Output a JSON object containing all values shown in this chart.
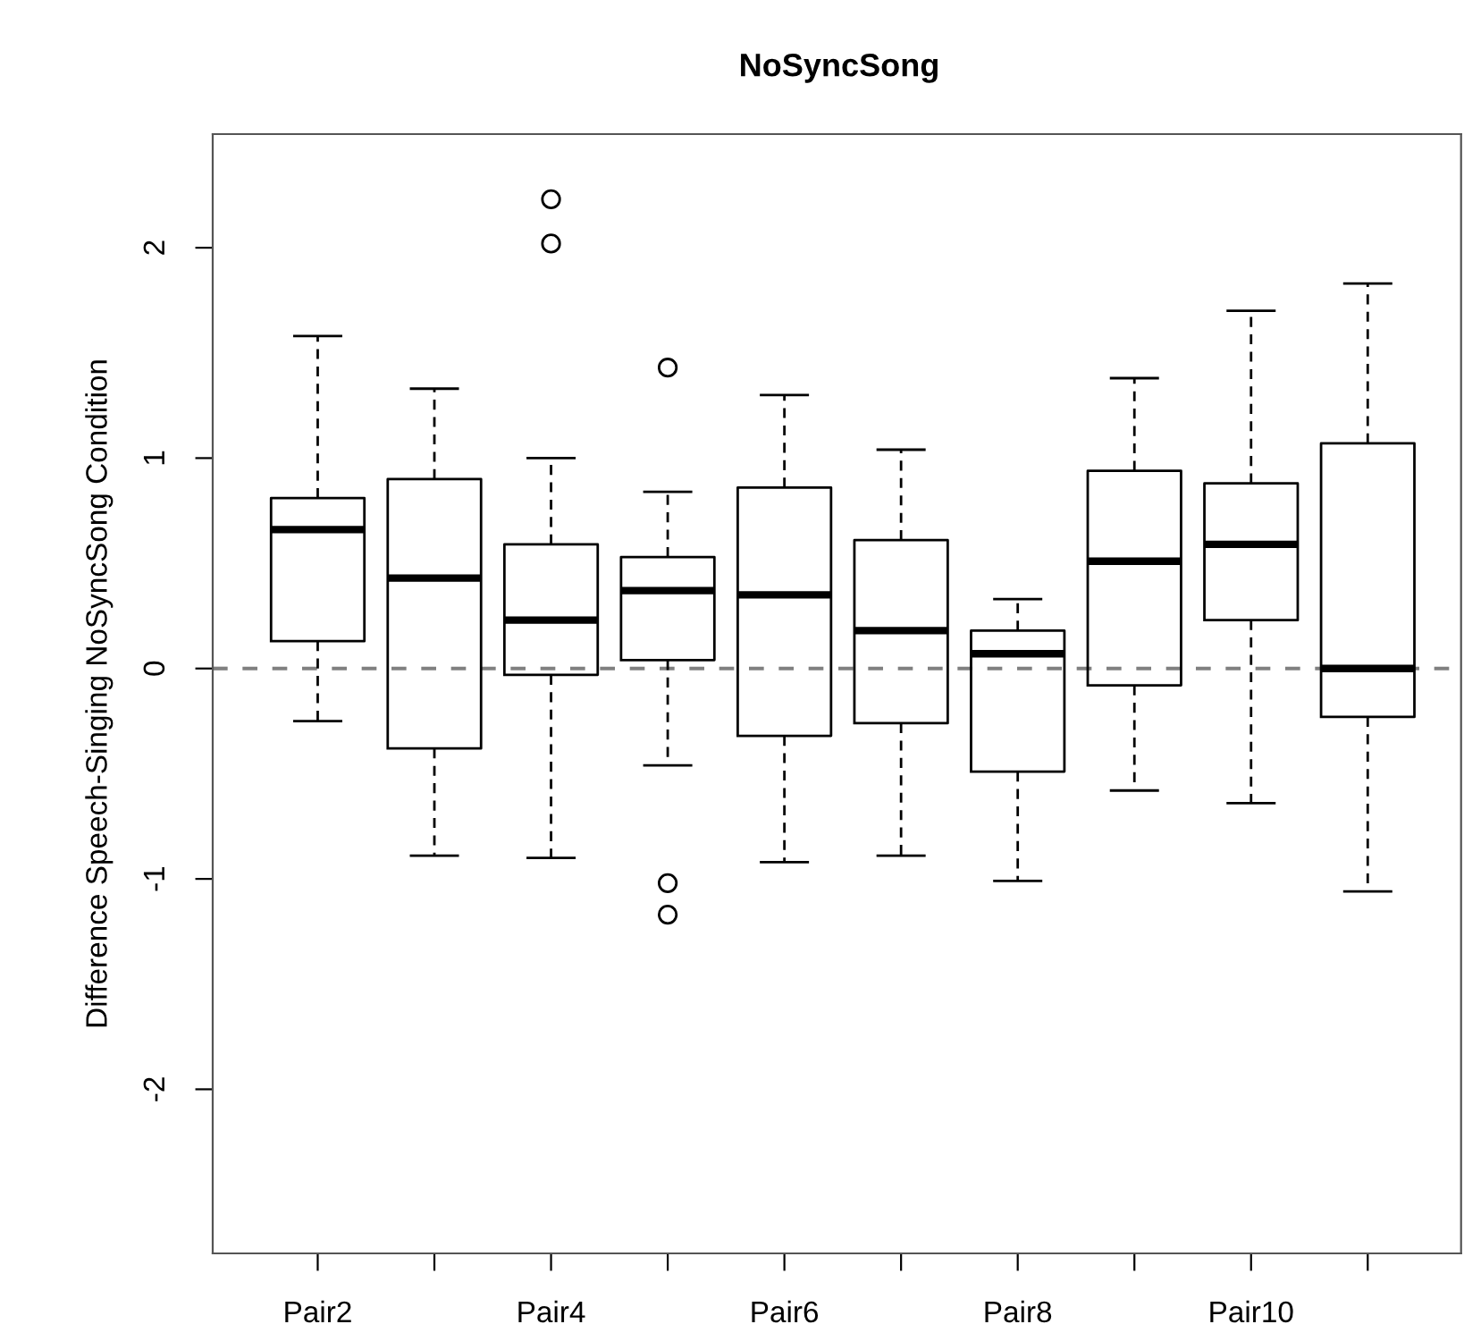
{
  "chart_data": {
    "type": "box",
    "title": "NoSyncSong",
    "ylabel": "Difference Speech-Singing NoSyncSong Condition",
    "categories": [
      "Pair2",
      null,
      "Pair4",
      null,
      "Pair6",
      null,
      "Pair8",
      null,
      "Pair10",
      null
    ],
    "boxes": [
      {
        "low": -0.25,
        "q1": 0.13,
        "median": 0.66,
        "q3": 0.81,
        "high": 1.58
      },
      {
        "low": -0.89,
        "q1": -0.38,
        "median": 0.43,
        "q3": 0.9,
        "high": 1.33
      },
      {
        "low": -0.9,
        "q1": -0.03,
        "median": 0.23,
        "q3": 0.59,
        "high": 1.0,
        "outliers": [
          2.23,
          2.02
        ]
      },
      {
        "low": -0.46,
        "q1": 0.04,
        "median": 0.37,
        "q3": 0.53,
        "high": 0.84,
        "outliers": [
          1.43,
          -1.02,
          -1.17
        ]
      },
      {
        "low": -0.92,
        "q1": -0.32,
        "median": 0.35,
        "q3": 0.86,
        "high": 1.3
      },
      {
        "low": -0.89,
        "q1": -0.26,
        "median": 0.18,
        "q3": 0.61,
        "high": 1.04
      },
      {
        "low": -1.01,
        "q1": -0.49,
        "median": 0.07,
        "q3": 0.18,
        "high": 0.33
      },
      {
        "low": -0.58,
        "q1": -0.08,
        "median": 0.51,
        "q3": 0.94,
        "high": 1.38
      },
      {
        "low": -0.64,
        "q1": 0.23,
        "median": 0.59,
        "q3": 0.88,
        "high": 1.7
      },
      {
        "low": -1.06,
        "q1": -0.23,
        "median": 0.0,
        "q3": 1.07,
        "high": 1.83
      }
    ],
    "ylim": [
      -2.78,
      2.54
    ],
    "yticks": [
      -2,
      -1,
      0,
      1,
      2
    ],
    "ref_lines": [
      {
        "axis": "y",
        "value": 0,
        "color": "#808080",
        "line_style": "dashed"
      }
    ],
    "grid": false
  }
}
